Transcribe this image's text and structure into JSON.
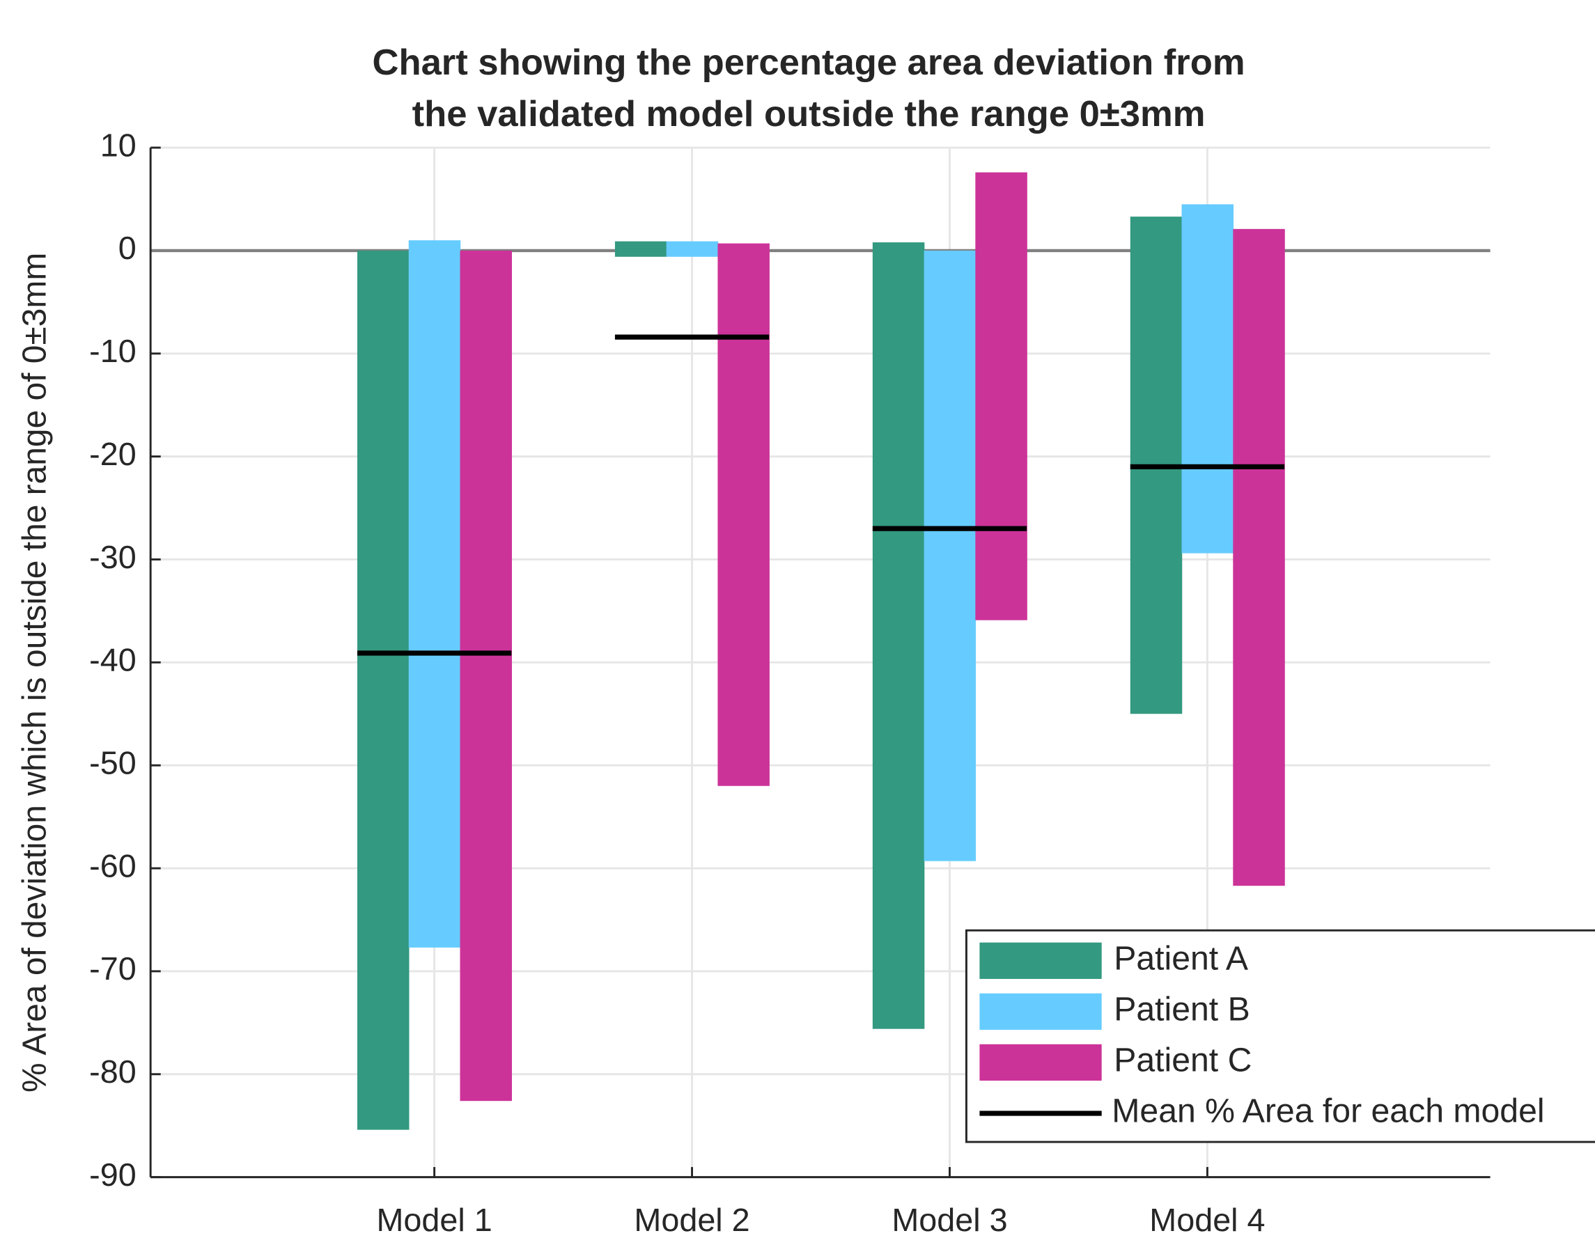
{
  "chart_data": {
    "type": "floating_bar",
    "title": [
      "Chart showing the percentage area deviation from",
      "the validated model outside the range 0±3mm"
    ],
    "ylabel": "% Area of deviation which is outside the range of 0±3mm",
    "categories": [
      "Model 1",
      "Model 2",
      "Model 3",
      "Model 4"
    ],
    "series": [
      {
        "name": "Patient A",
        "color": "#339980",
        "high": [
          0,
          0.9,
          0.8,
          3.3
        ],
        "low": [
          -85.4,
          -0.6,
          -75.6,
          -45
        ]
      },
      {
        "name": "Patient B",
        "color": "#66ccff",
        "high": [
          1,
          0.9,
          0,
          4.5
        ],
        "low": [
          -67.7,
          -0.6,
          -59.3,
          -29.4
        ]
      },
      {
        "name": "Patient C",
        "color": "#cc3399",
        "high": [
          0,
          0.7,
          7.6,
          2.1
        ],
        "low": [
          -82.6,
          -52,
          -35.9,
          -61.7
        ]
      }
    ],
    "mean": {
      "name": "Mean % Area for each model",
      "color": "#000000",
      "values": [
        -39.1,
        -8.4,
        -27,
        -21
      ]
    },
    "ylim": [
      -90,
      10
    ],
    "yticks": [
      -90,
      -80,
      -70,
      -60,
      -50,
      -40,
      -30,
      -20,
      -10,
      0,
      10
    ],
    "grid": true,
    "legend_loc": "lower right"
  }
}
